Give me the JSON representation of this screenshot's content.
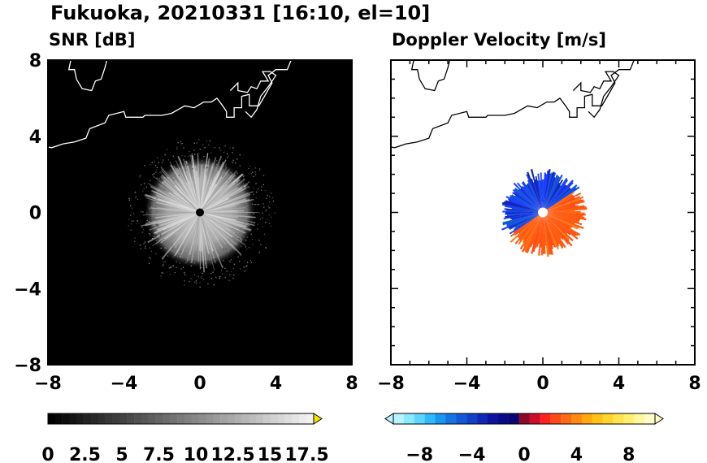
{
  "figure": {
    "title": "Fukuoka, 20210331 [16:10, el=10]"
  },
  "chart_data": [
    {
      "type": "heatmap",
      "title": "SNR [dB]",
      "xlim": [
        -8,
        8
      ],
      "ylim": [
        -8,
        8
      ],
      "xticks": [
        "−8",
        "−4",
        "0",
        "4",
        "8"
      ],
      "yticks": [
        "8",
        "4",
        "0",
        "−4",
        "−8"
      ],
      "background": "#000000",
      "echo_radius_km": 2.8,
      "colorbar": {
        "min": 0,
        "max": 18.5,
        "step": 0.5,
        "extend": "max",
        "labels": [
          "0",
          "2.5",
          "5",
          "7.5",
          "10",
          "12.5",
          "15",
          "17.5"
        ],
        "extend_color": "#f2e600"
      }
    },
    {
      "type": "heatmap",
      "title": "Doppler Velocity [m/s]",
      "xlim": [
        -8,
        8
      ],
      "ylim": [
        -8,
        8
      ],
      "xticks": [
        "−8",
        "−4",
        "0",
        "4",
        "8"
      ],
      "yticks": [],
      "background": "#ffffff",
      "echo_radius_km": 2.2,
      "approach_color": "#1a3cff",
      "recede_color": "#ff5a10",
      "colorbar": {
        "min": -10,
        "max": 10,
        "extend": "both",
        "labels": [
          "−8",
          "−4",
          "0",
          "4",
          "8"
        ],
        "colors": [
          "#b8f4ff",
          "#8ae8ff",
          "#5cd6ff",
          "#30b8ff",
          "#1a96f0",
          "#1574e0",
          "#1458d8",
          "#1440c8",
          "#1028b4",
          "#0c14a0",
          "#0a0a88",
          "#080670",
          "#8a0a28",
          "#c8102a",
          "#ff2020",
          "#ff4a18",
          "#ff6a14",
          "#ff8c10",
          "#ffa810",
          "#ffc018",
          "#ffd430",
          "#ffe450",
          "#fff070",
          "#fff8a0",
          "#fffcc8"
        ]
      }
    }
  ],
  "coastline": [
    [
      -9,
      3.5
    ],
    [
      -8.4,
      3.5
    ],
    [
      -7.8,
      3.4
    ],
    [
      -7.2,
      3.6
    ],
    [
      -6.6,
      3.7
    ],
    [
      -6.0,
      3.9
    ],
    [
      -5.8,
      4.4
    ],
    [
      -5.0,
      4.7
    ],
    [
      -4.8,
      5.1
    ],
    [
      -4.0,
      5.3
    ],
    [
      -3.9,
      5.0
    ],
    [
      -3.0,
      5.0
    ],
    [
      -2.9,
      5.1
    ],
    [
      -2.0,
      5.1
    ],
    [
      -1.5,
      5.2
    ],
    [
      -0.8,
      5.6
    ],
    [
      -0.3,
      5.5
    ],
    [
      0.2,
      5.8
    ],
    [
      0.6,
      5.8
    ],
    [
      0.9,
      6.0
    ],
    [
      1.2,
      5.6
    ],
    [
      1.4,
      5.3
    ],
    [
      1.4,
      5.0
    ],
    [
      1.8,
      5.0
    ],
    [
      1.8,
      5.5
    ],
    [
      2.2,
      5.5
    ],
    [
      2.2,
      6.1
    ],
    [
      2.6,
      6.2
    ],
    [
      2.6,
      5.6
    ],
    [
      3.1,
      5.6
    ],
    [
      3.4,
      6.1
    ],
    [
      3.8,
      6.8
    ],
    [
      3.6,
      7.2
    ],
    [
      4.0,
      7.5
    ],
    [
      4.6,
      7.5
    ],
    [
      4.8,
      8.0
    ]
  ],
  "coastline2": [
    [
      -6.8,
      8.0
    ],
    [
      -6.9,
      7.5
    ],
    [
      -6.6,
      7.5
    ],
    [
      -6.5,
      7.0
    ],
    [
      -6.2,
      6.5
    ],
    [
      -5.7,
      6.4
    ],
    [
      -5.5,
      6.9
    ],
    [
      -5.2,
      7.0
    ],
    [
      -5.0,
      7.6
    ],
    [
      -4.9,
      8.0
    ]
  ],
  "coastline3": [
    [
      1.6,
      6.4
    ],
    [
      2.0,
      6.8
    ],
    [
      2.0,
      6.4
    ],
    [
      2.5,
      6.3
    ],
    [
      2.7,
      6.6
    ],
    [
      3.0,
      6.5
    ],
    [
      3.2,
      6.9
    ],
    [
      3.6,
      6.9
    ],
    [
      3.3,
      7.4
    ],
    [
      3.7,
      7.4
    ],
    [
      4.0,
      7.2
    ],
    [
      3.6,
      6.6
    ],
    [
      3.2,
      6.1
    ],
    [
      3.0,
      5.4
    ],
    [
      2.7,
      5.0
    ],
    [
      2.4,
      5.3
    ]
  ]
}
